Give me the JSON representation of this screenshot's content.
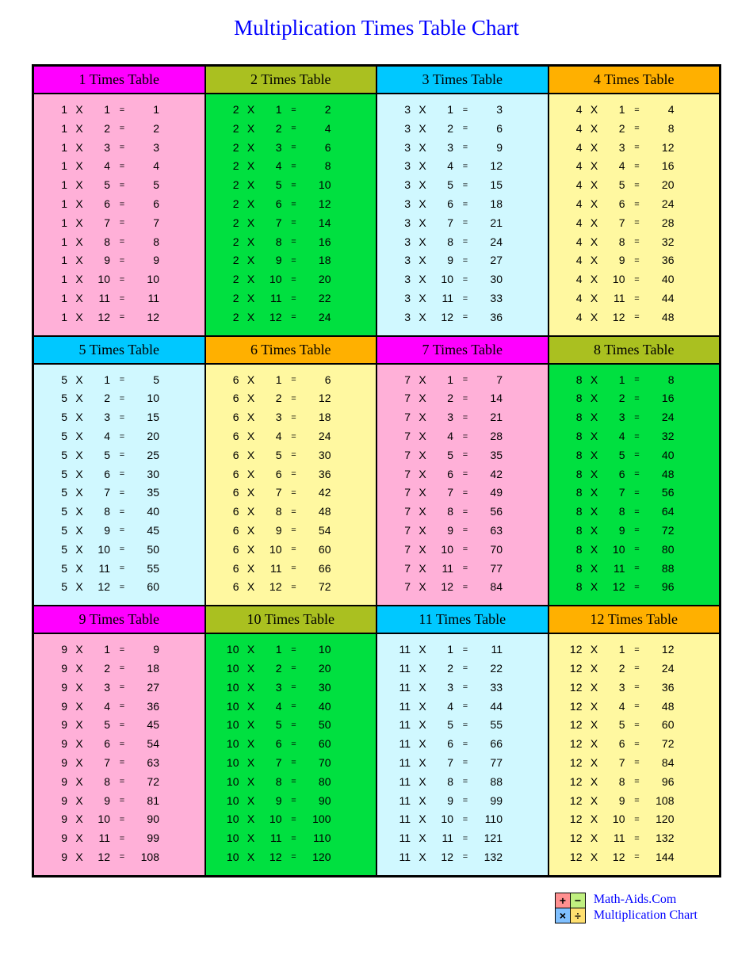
{
  "title": "Multiplication Times Table Chart",
  "footer": {
    "site": "Math-Aids.Com",
    "subtitle": "Multiplication Chart",
    "icon_colors": [
      "#ff9090",
      "#c0f080",
      "#80c0ff",
      "#ffe070"
    ],
    "icon_symbols": [
      "+",
      "−",
      "×",
      "÷"
    ]
  },
  "header_colors": {
    "magenta": "#ff00ff",
    "olive": "#aac020",
    "cyan": "#00c8ff",
    "orange": "#ffb000"
  },
  "body_colors": {
    "pink": "#ffb0d8",
    "green": "#00e040",
    "lightcyan": "#d0f8ff",
    "yellow": "#fff8a0"
  },
  "tables": [
    {
      "n": 1,
      "label": "1 Times Table",
      "header_color": "magenta",
      "body_color": "pink"
    },
    {
      "n": 2,
      "label": "2 Times Table",
      "header_color": "olive",
      "body_color": "green"
    },
    {
      "n": 3,
      "label": "3 Times Table",
      "header_color": "cyan",
      "body_color": "lightcyan"
    },
    {
      "n": 4,
      "label": "4 Times Table",
      "header_color": "orange",
      "body_color": "yellow"
    },
    {
      "n": 5,
      "label": "5 Times Table",
      "header_color": "cyan",
      "body_color": "lightcyan"
    },
    {
      "n": 6,
      "label": "6 Times Table",
      "header_color": "orange",
      "body_color": "yellow"
    },
    {
      "n": 7,
      "label": "7 Times Table",
      "header_color": "magenta",
      "body_color": "pink"
    },
    {
      "n": 8,
      "label": "8 Times Table",
      "header_color": "olive",
      "body_color": "green"
    },
    {
      "n": 9,
      "label": "9 Times Table",
      "header_color": "magenta",
      "body_color": "pink"
    },
    {
      "n": 10,
      "label": "10 Times Table",
      "header_color": "olive",
      "body_color": "green"
    },
    {
      "n": 11,
      "label": "11 Times Table",
      "header_color": "cyan",
      "body_color": "lightcyan"
    },
    {
      "n": 12,
      "label": "12 Times Table",
      "header_color": "orange",
      "body_color": "yellow"
    }
  ],
  "multipliers": [
    1,
    2,
    3,
    4,
    5,
    6,
    7,
    8,
    9,
    10,
    11,
    12
  ],
  "x_symbol": "X",
  "eq_symbol": "="
}
